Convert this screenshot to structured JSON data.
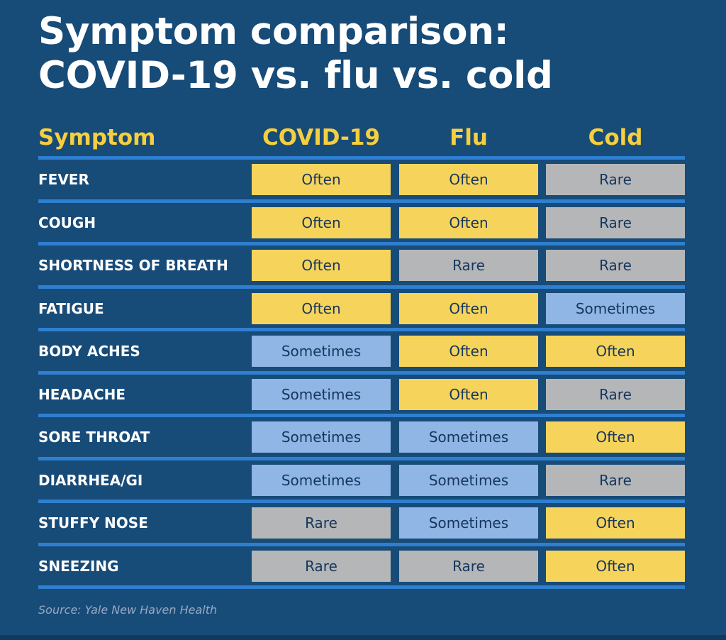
{
  "title": {
    "line1": "Symptom comparison:",
    "line2": "COVID-19 vs. flu vs. cold"
  },
  "headers": {
    "symptom": "Symptom",
    "covid": "COVID-19",
    "flu": "Flu",
    "cold": "Cold"
  },
  "rows": [
    {
      "symptom": "FEVER",
      "covid": "Often",
      "flu": "Often",
      "cold": "Rare"
    },
    {
      "symptom": "COUGH",
      "covid": "Often",
      "flu": "Often",
      "cold": "Rare"
    },
    {
      "symptom": "SHORTNESS OF BREATH",
      "covid": "Often",
      "flu": "Rare",
      "cold": "Rare"
    },
    {
      "symptom": "FATIGUE",
      "covid": "Often",
      "flu": "Often",
      "cold": "Sometimes"
    },
    {
      "symptom": "BODY ACHES",
      "covid": "Sometimes",
      "flu": "Often",
      "cold": "Often"
    },
    {
      "symptom": "HEADACHE",
      "covid": "Sometimes",
      "flu": "Often",
      "cold": "Rare"
    },
    {
      "symptom": "SORE THROAT",
      "covid": "Sometimes",
      "flu": "Sometimes",
      "cold": "Often"
    },
    {
      "symptom": "DIARRHEA/GI",
      "covid": "Sometimes",
      "flu": "Sometimes",
      "cold": "Rare"
    },
    {
      "symptom": "STUFFY NOSE",
      "covid": "Rare",
      "flu": "Sometimes",
      "cold": "Often"
    },
    {
      "symptom": "SNEEZING",
      "covid": "Rare",
      "flu": "Rare",
      "cold": "Often"
    }
  ],
  "source": "Source: Yale New Haven Health",
  "colors": {
    "background": "#174b78",
    "header_text": "#f6cf3f",
    "rule": "#2f7fd1",
    "often": "#f6d45b",
    "rare": "#b5b6b8",
    "sometimes": "#8fb6e4"
  }
}
